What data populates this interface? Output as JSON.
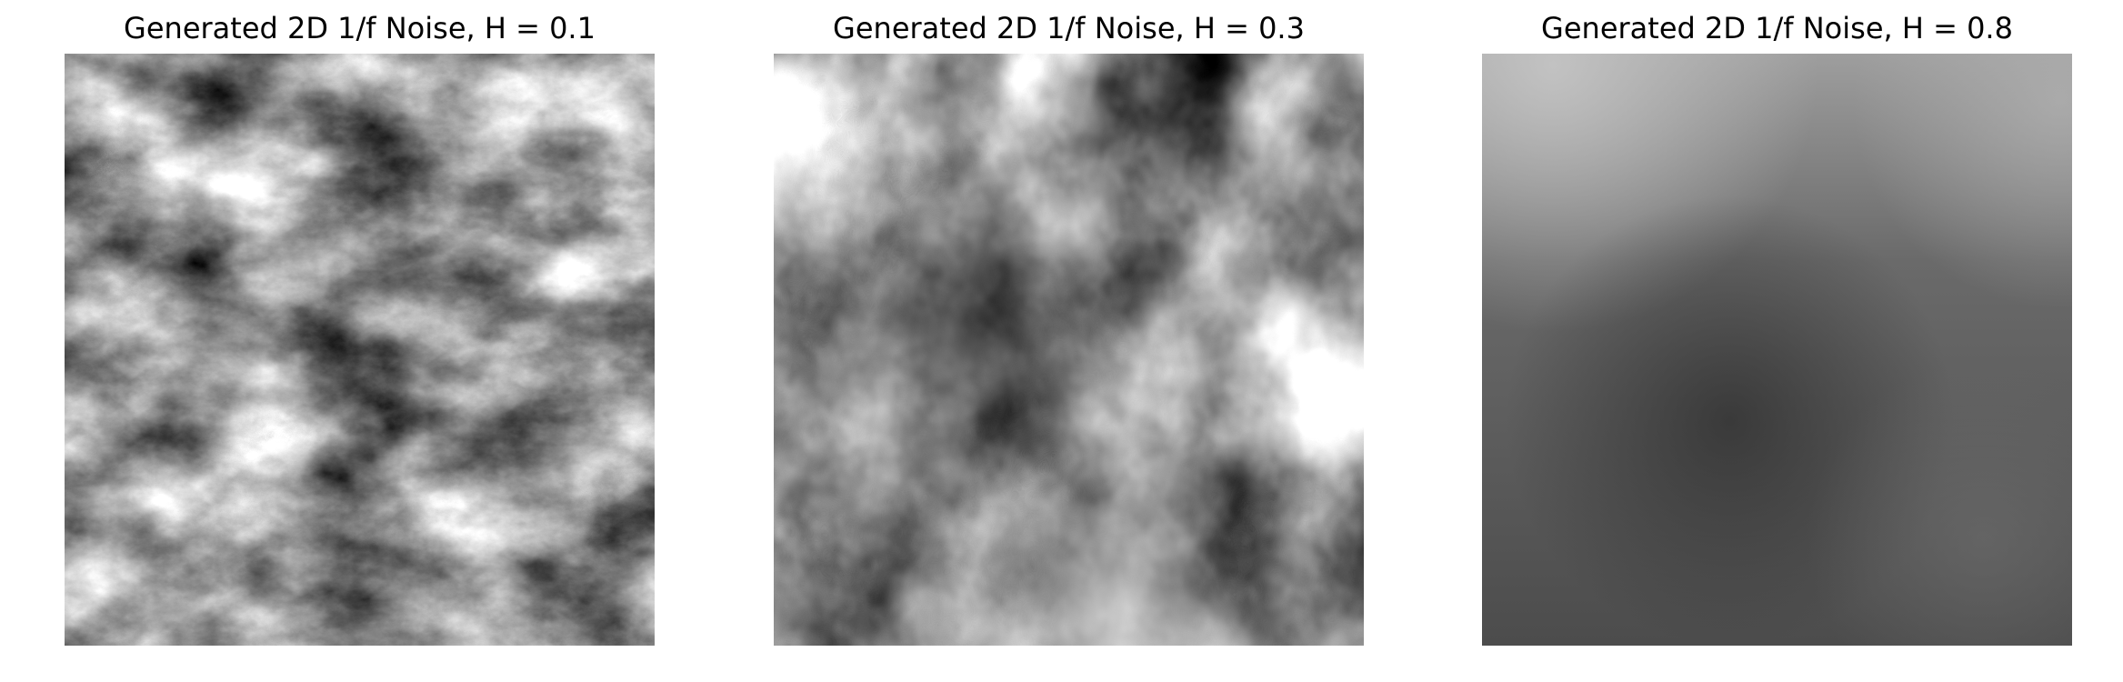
{
  "panels": [
    {
      "title": "Generated 2D 1/f Noise, H = 0.1",
      "colormap": "gray"
    },
    {
      "title": "Generated 2D 1/f Noise, H = 0.3",
      "colormap": "gray"
    },
    {
      "title": "Generated 2D 1/f Noise, H = 0.8",
      "colormap": "gray"
    }
  ],
  "colors": {
    "background": "#ffffff",
    "text": "#000000"
  }
}
